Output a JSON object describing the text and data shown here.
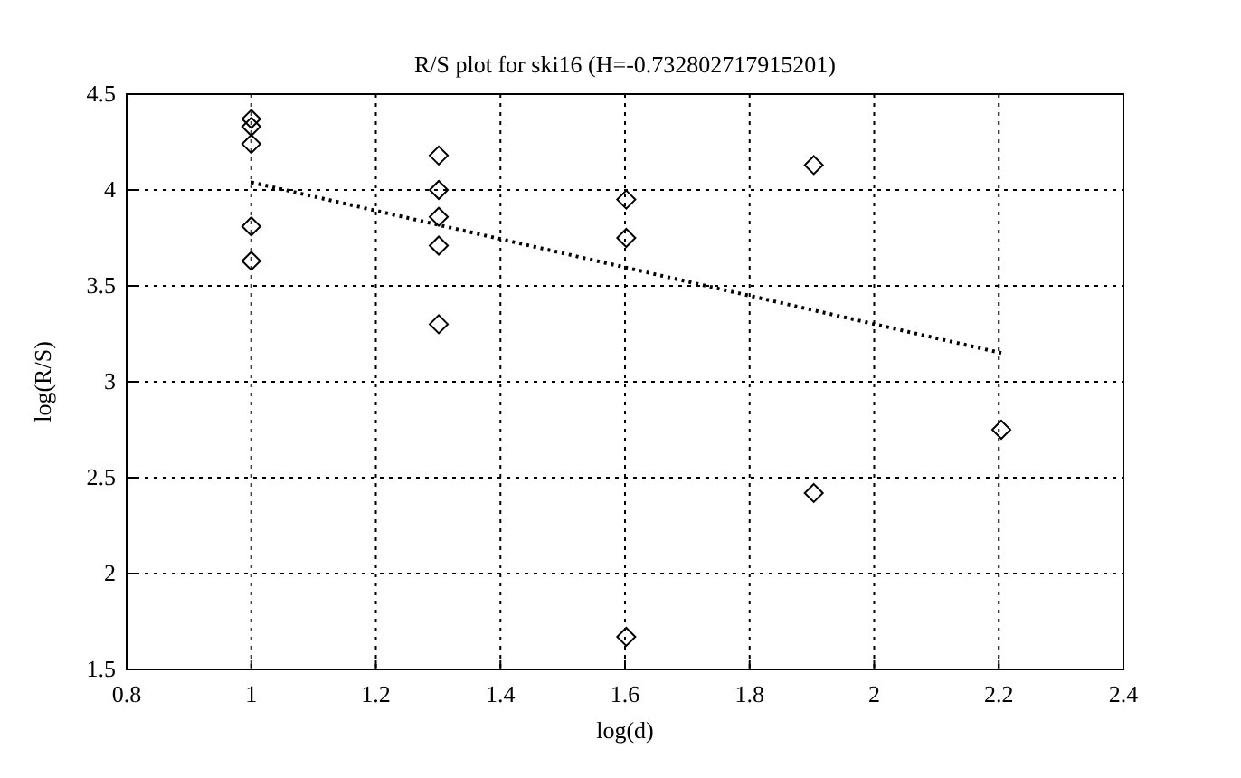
{
  "chart_data": {
    "type": "scatter",
    "title": "R/S plot for ski16 (H=-0.732802717915201)",
    "xlabel": "log(d)",
    "ylabel": "log(R/S)",
    "xlim": [
      0.8,
      2.4
    ],
    "xticks": [
      0.8,
      1,
      1.2,
      1.4,
      1.6,
      1.8,
      2,
      2.2,
      2.4
    ],
    "ylim": [
      1.5,
      4.5
    ],
    "yticks": [
      1.5,
      2,
      2.5,
      3,
      3.5,
      4,
      4.5
    ],
    "grid": true,
    "series": [
      {
        "color": "#000000",
        "marker": "diamond",
        "x": [
          1,
          1,
          1,
          1,
          1,
          1.301,
          1.301,
          1.301,
          1.301,
          1.301,
          1.602,
          1.602,
          1.602,
          1.903,
          1.903,
          2.204
        ],
        "values": [
          4.37,
          4.33,
          4.24,
          3.81,
          3.63,
          4.18,
          4,
          3.86,
          3.71,
          3.3,
          3.95,
          3.75,
          1.67,
          4.13,
          2.42,
          2.75
        ]
      },
      {
        "type": "line",
        "color": "#000000",
        "marker": "none",
        "line_style": "dotted",
        "x": [
          1,
          2.204
        ],
        "values": [
          4.04,
          3.15
        ]
      }
    ]
  }
}
